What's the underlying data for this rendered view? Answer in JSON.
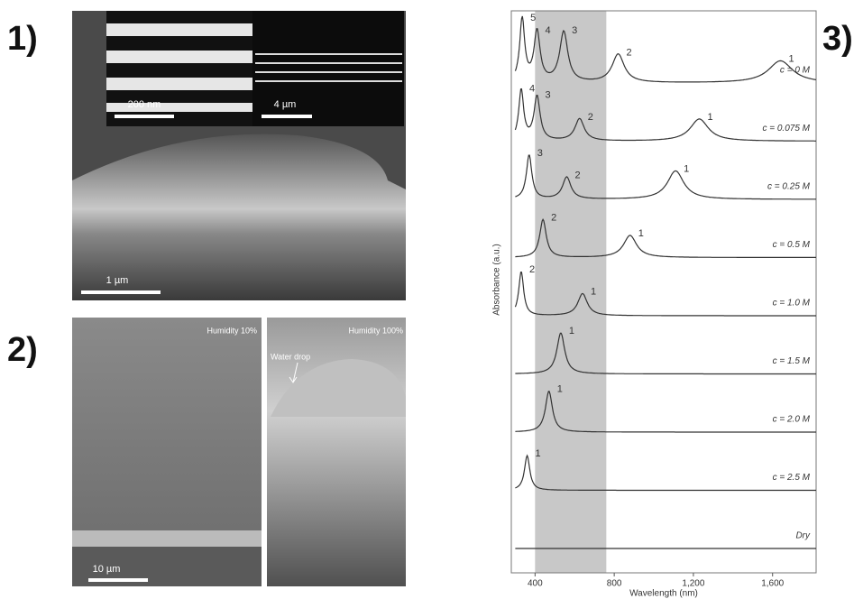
{
  "panel1": {
    "label": "1)",
    "scale_bars": [
      "200 nm",
      "4 µm",
      "1 µm"
    ]
  },
  "panel2": {
    "label": "2)",
    "left_title": "Humidity 10%",
    "right_title": "Humidity 100%",
    "annotation": "Water drop",
    "scale_bar": "10 µm"
  },
  "panel3": {
    "label": "3)",
    "y_label": "Absorbance (a.u.)",
    "x_label": "Wavelength (nm)",
    "xlim": [
      280,
      1820
    ],
    "xticks": [
      400,
      800,
      {
        "value": 1200,
        "label": "1,200"
      },
      {
        "value": 1600,
        "label": "1,600"
      }
    ],
    "shaded_range": [
      400,
      760
    ],
    "spectra": [
      {
        "name": "c = 0 M",
        "peaks": [
          {
            "label": "5",
            "wavelength": 335,
            "absorbance": 1.0
          },
          {
            "label": "4",
            "wavelength": 410,
            "absorbance": 0.8
          },
          {
            "label": "3",
            "wavelength": 545,
            "absorbance": 0.8
          },
          {
            "label": "2",
            "wavelength": 820,
            "absorbance": 0.45
          },
          {
            "label": "1",
            "wavelength": 1640,
            "absorbance": 0.35
          }
        ]
      },
      {
        "name": "c = 0.075 M",
        "peaks": [
          {
            "label": "4",
            "wavelength": 330,
            "absorbance": 0.8
          },
          {
            "label": "3",
            "wavelength": 410,
            "absorbance": 0.7
          },
          {
            "label": "2",
            "wavelength": 625,
            "absorbance": 0.35
          },
          {
            "label": "1",
            "wavelength": 1230,
            "absorbance": 0.35
          }
        ]
      },
      {
        "name": "c = 0.25 M",
        "peaks": [
          {
            "label": "3",
            "wavelength": 370,
            "absorbance": 0.7
          },
          {
            "label": "2",
            "wavelength": 560,
            "absorbance": 0.35
          },
          {
            "label": "1",
            "wavelength": 1110,
            "absorbance": 0.45
          }
        ]
      },
      {
        "name": "c = 0.5 M",
        "peaks": [
          {
            "label": "2",
            "wavelength": 440,
            "absorbance": 0.6
          },
          {
            "label": "1",
            "wavelength": 880,
            "absorbance": 0.35
          }
        ]
      },
      {
        "name": "c = 1.0 M",
        "peaks": [
          {
            "label": "2",
            "wavelength": 330,
            "absorbance": 0.7
          },
          {
            "label": "1",
            "wavelength": 640,
            "absorbance": 0.35
          }
        ]
      },
      {
        "name": "c = 1.5 M",
        "peaks": [
          {
            "label": "1",
            "wavelength": 530,
            "absorbance": 0.65
          }
        ]
      },
      {
        "name": "c = 2.0 M",
        "peaks": [
          {
            "label": "1",
            "wavelength": 470,
            "absorbance": 0.65
          }
        ]
      },
      {
        "name": "c = 2.5 M",
        "peaks": [
          {
            "label": "1",
            "wavelength": 360,
            "absorbance": 0.55
          }
        ]
      },
      {
        "name": "Dry",
        "peaks": []
      }
    ]
  }
}
